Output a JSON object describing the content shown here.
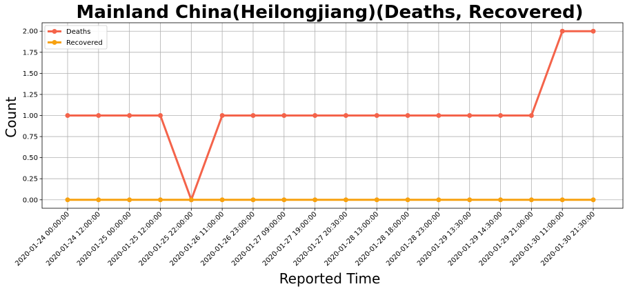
{
  "chart_data": {
    "type": "line",
    "title": "Mainland China(Heilongjiang)(Deaths, Recovered)",
    "xlabel": "Reported Time",
    "ylabel": "Count",
    "categories": [
      "2020-01-24 00:00:00",
      "2020-01-24 12:00:00",
      "2020-01-25 00:00:00",
      "2020-01-25 12:00:00",
      "2020-01-25 22:00:00",
      "2020-01-26 11:00:00",
      "2020-01-26 23:00:00",
      "2020-01-27 09:00:00",
      "2020-01-27 19:00:00",
      "2020-01-27 20:30:00",
      "2020-01-28 13:00:00",
      "2020-01-28 18:00:00",
      "2020-01-28 23:00:00",
      "2020-01-29 13:30:00",
      "2020-01-29 14:30:00",
      "2020-01-29 21:00:00",
      "2020-01-30 11:00:00",
      "2020-01-30 21:30:00"
    ],
    "series": [
      {
        "name": "Deaths",
        "color": "#f4634a",
        "values": [
          1,
          1,
          1,
          1,
          0,
          1,
          1,
          1,
          1,
          1,
          1,
          1,
          1,
          1,
          1,
          1,
          2,
          2
        ]
      },
      {
        "name": "Recovered",
        "color": "#f7a10f",
        "values": [
          0,
          0,
          0,
          0,
          0,
          0,
          0,
          0,
          0,
          0,
          0,
          0,
          0,
          0,
          0,
          0,
          0,
          0
        ]
      }
    ],
    "ylim": [
      -0.1,
      2.1
    ],
    "yticks": [
      "0.00",
      "0.25",
      "0.50",
      "0.75",
      "1.00",
      "1.25",
      "1.50",
      "1.75",
      "2.00"
    ],
    "grid": true,
    "legend_position": "top-left"
  }
}
